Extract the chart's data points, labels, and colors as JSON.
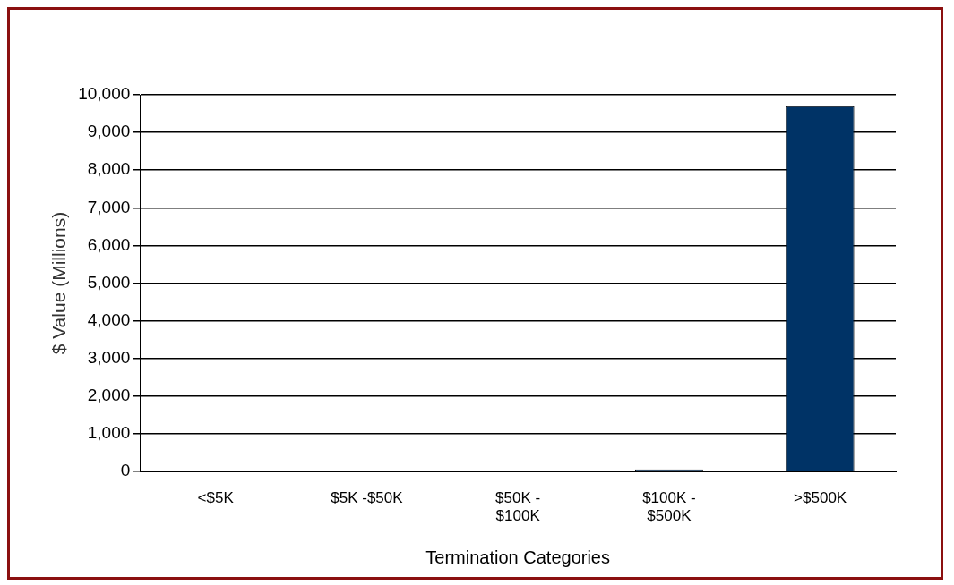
{
  "chart_data": {
    "type": "bar",
    "xlabel": "Termination Categories",
    "ylabel": "$ Value (Millions)",
    "categories": [
      "<$5K",
      "$5K -$50K",
      "$50K - $100K",
      "$100K - $500K",
      ">$500K"
    ],
    "values": [
      10,
      10,
      10,
      60,
      9700
    ],
    "color": "#003366",
    "ylim": [
      0,
      10000
    ],
    "yticks": [
      0,
      {
        "value": 1000,
        "label": "1,000"
      },
      {
        "value": 2000,
        "label": "2,000"
      },
      {
        "value": 3000,
        "label": "3,000"
      },
      {
        "value": 4000,
        "label": "4,000"
      },
      {
        "value": 5000,
        "label": "5,000"
      },
      {
        "value": 6000,
        "label": "6,000"
      },
      {
        "value": 7000,
        "label": "7,000"
      },
      {
        "value": 8000,
        "label": "8,000"
      },
      {
        "value": 9000,
        "label": "9,000"
      },
      {
        "value": 10000,
        "label": "10,000"
      }
    ],
    "grid": "y",
    "legend": false
  }
}
